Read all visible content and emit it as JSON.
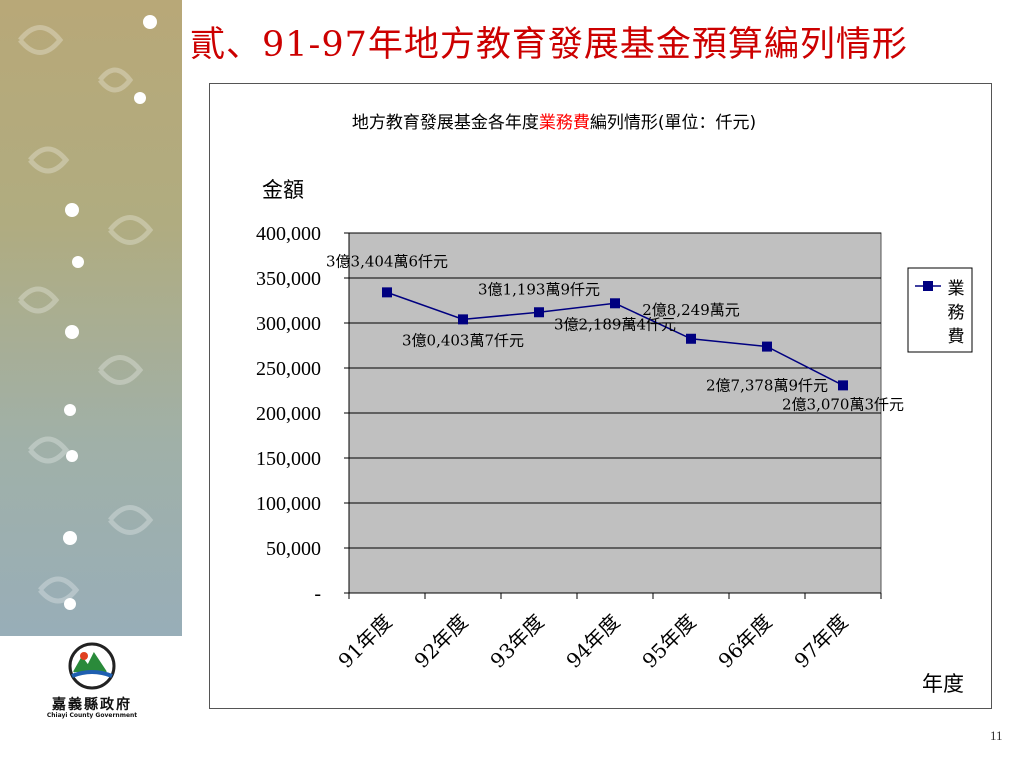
{
  "slide": {
    "title": "貳、91-97年地方教育發展基金預算編列情形",
    "page_number": "11"
  },
  "logo": {
    "name": "嘉義縣政府",
    "subtitle": "Chiayi County Government"
  },
  "chart_data": {
    "type": "line",
    "title_prefix": "地方教育發展基金各年度",
    "title_highlight": "業務費",
    "title_suffix": "編列情形(單位：仟元)",
    "ylabel": "金額",
    "xlabel": "年度",
    "ylim": [
      0,
      400000
    ],
    "y_ticks": [
      "-",
      "50,000",
      "100,000",
      "150,000",
      "200,000",
      "250,000",
      "300,000",
      "350,000",
      "400,000"
    ],
    "categories": [
      "91年度",
      "92年度",
      "93年度",
      "94年度",
      "95年度",
      "96年度",
      "97年度"
    ],
    "series": [
      {
        "name": "業務費",
        "values": [
          334046,
          304037,
          311939,
          321894,
          282490,
          273789,
          230703
        ],
        "labels": [
          "3億3,404萬6仟元",
          "3億0,403萬7仟元",
          "3億1,193萬9仟元",
          "3億2,189萬4仟元",
          "2億8,249萬元",
          "2億7,378萬9仟元",
          "2億3,070萬3仟元"
        ]
      }
    ],
    "legend": "right",
    "grid": true,
    "colors": {
      "line": "#000080",
      "plot_bg": "#c0c0c0",
      "highlight": "#ff0000"
    }
  }
}
